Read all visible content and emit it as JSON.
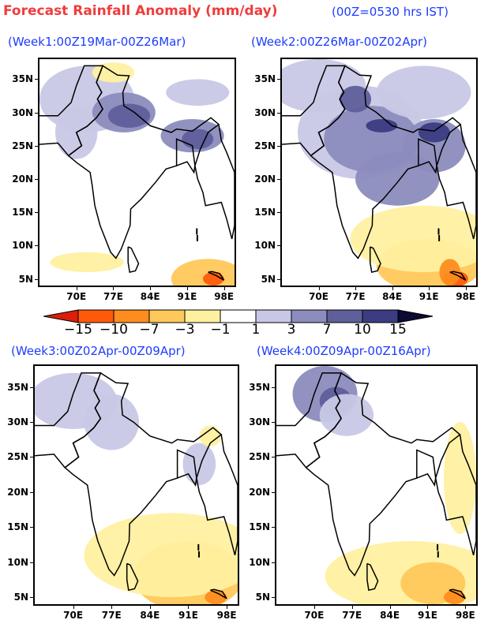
{
  "header": {
    "title": "Forecast Rainfall Anomaly (mm/day)",
    "time_note": "(00Z=0530 hrs IST)"
  },
  "panels": [
    {
      "label": "(Week1:00Z19Mar-00Z26Mar)"
    },
    {
      "label": "(Week2:00Z26Mar-00Z02Apr)"
    },
    {
      "label": "(Week3:00Z02Apr-00Z09Apr)"
    },
    {
      "label": "(Week4:00Z09Apr-00Z16Apr)"
    }
  ],
  "axes": {
    "lat_ticks": [
      "35N",
      "30N",
      "25N",
      "20N",
      "15N",
      "10N",
      "5N"
    ],
    "lon_ticks": [
      "70E",
      "77E",
      "84E",
      "91E",
      "98E"
    ]
  },
  "colorbar": {
    "labels": [
      "−15",
      "−10",
      "−7",
      "−3",
      "−1",
      "1",
      "3",
      "7",
      "10",
      "15"
    ],
    "colors": [
      "#dc1e0a",
      "#ff5a0a",
      "#ff8c1e",
      "#ffc85a",
      "#fff0a0",
      "#ffffff",
      "#c8c8e6",
      "#8c8cbe",
      "#5f5f9b",
      "#3c3c82",
      "#0a0a32"
    ]
  }
}
